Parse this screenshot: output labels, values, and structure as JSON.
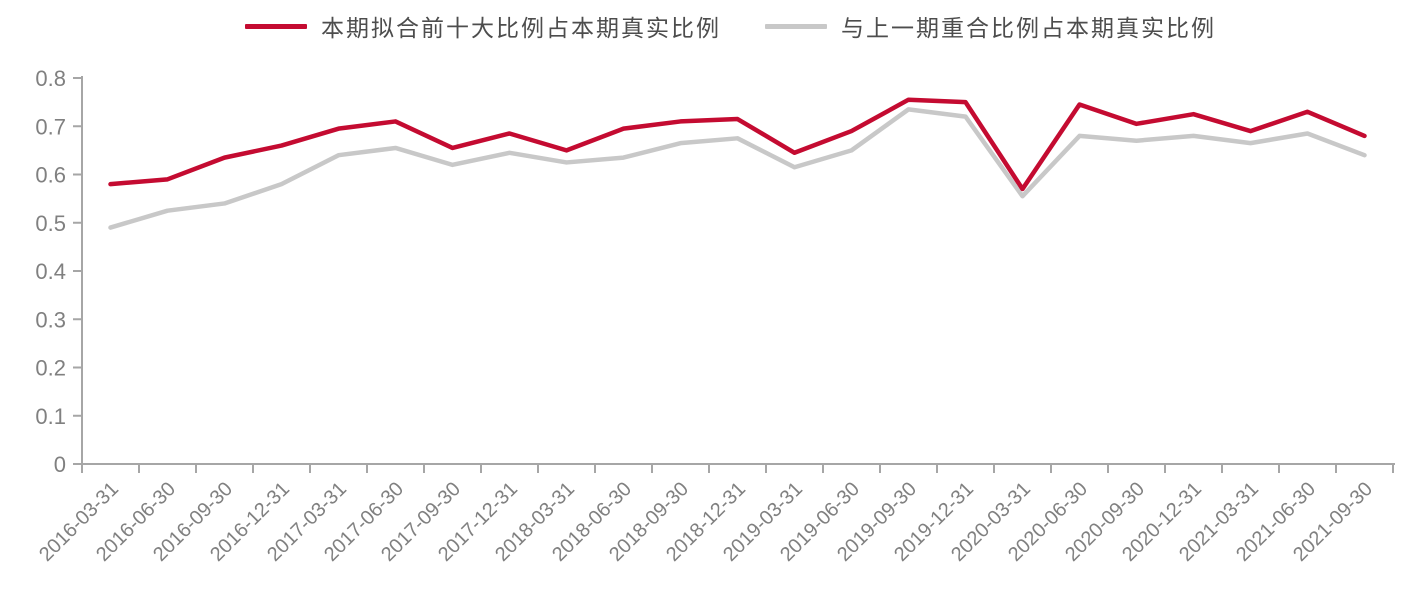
{
  "chart_data": {
    "type": "line",
    "title": "",
    "xlabel": "",
    "ylabel": "",
    "categories": [
      "2016-03-31",
      "2016-06-30",
      "2016-09-30",
      "2016-12-31",
      "2017-03-31",
      "2017-06-30",
      "2017-09-30",
      "2017-12-31",
      "2018-03-31",
      "2018-06-30",
      "2018-09-30",
      "2018-12-31",
      "2019-03-31",
      "2019-06-30",
      "2019-09-30",
      "2019-12-31",
      "2020-03-31",
      "2020-06-30",
      "2020-09-30",
      "2020-12-31",
      "2021-03-31",
      "2021-06-30",
      "2021-09-30"
    ],
    "series": [
      {
        "name": "本期拟合前十大比例占本期真实比例",
        "color": "#c40b31",
        "values": [
          0.58,
          0.59,
          0.635,
          0.66,
          0.695,
          0.71,
          0.655,
          0.685,
          0.65,
          0.695,
          0.71,
          0.715,
          0.645,
          0.69,
          0.755,
          0.75,
          0.57,
          0.745,
          0.705,
          0.725,
          0.69,
          0.73,
          0.68
        ]
      },
      {
        "name": "与上一期重合比例占本期真实比例",
        "color": "#c8c8c8",
        "values": [
          0.49,
          0.525,
          0.54,
          0.58,
          0.64,
          0.655,
          0.62,
          0.645,
          0.625,
          0.635,
          0.665,
          0.675,
          0.615,
          0.65,
          0.735,
          0.72,
          0.555,
          0.68,
          0.67,
          0.68,
          0.665,
          0.685,
          0.64
        ]
      }
    ],
    "ylim": [
      0,
      0.8
    ],
    "yticks": [
      0,
      0.1,
      0.2,
      0.3,
      0.4,
      0.5,
      0.6,
      0.7,
      0.8
    ],
    "grid": false,
    "legend_position": "top",
    "colors": {
      "axis": "#a6a6a6",
      "tick_label": "#808080",
      "legend_text": "#4d4d4d",
      "background": "#ffffff"
    }
  }
}
